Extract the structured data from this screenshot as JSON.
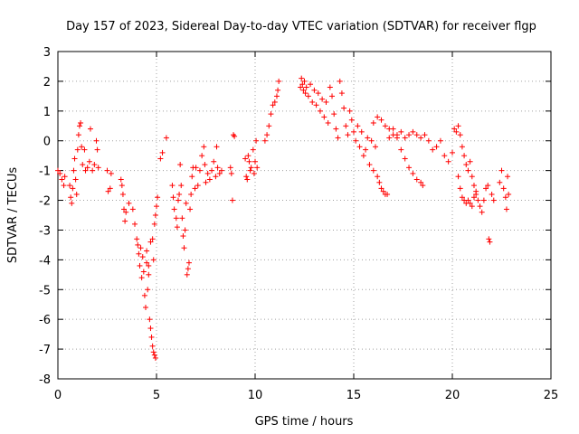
{
  "chart_data": {
    "type": "scatter",
    "title": "Day 157 of 2023, Sidereal Day-to-day VTEC variation (SDTVAR) for receiver flgp",
    "xlabel": "GPS time / hours",
    "ylabel": "SDTVAR / TECUs",
    "xlim": [
      0,
      25
    ],
    "ylim": [
      -8,
      3
    ],
    "xticks": [
      0,
      5,
      10,
      15,
      20,
      25
    ],
    "yticks": [
      -8,
      -7,
      -6,
      -5,
      -4,
      -3,
      -2,
      -1,
      0,
      1,
      2,
      3
    ],
    "grid": true,
    "marker": "+",
    "series": [
      {
        "name": "SDTVAR",
        "color": "#ff0000",
        "points": [
          [
            0.0,
            -1.0
          ],
          [
            0.1,
            -1.1
          ],
          [
            0.2,
            -1.3
          ],
          [
            0.3,
            -1.5
          ],
          [
            0.35,
            -1.2
          ],
          [
            0.6,
            -1.5
          ],
          [
            0.65,
            -1.9
          ],
          [
            0.7,
            -2.1
          ],
          [
            0.75,
            -1.6
          ],
          [
            0.8,
            -1.0
          ],
          [
            0.85,
            -0.6
          ],
          [
            0.9,
            -1.3
          ],
          [
            0.95,
            -1.8
          ],
          [
            1.0,
            -0.3
          ],
          [
            1.05,
            0.2
          ],
          [
            1.1,
            0.5
          ],
          [
            1.15,
            0.6
          ],
          [
            1.2,
            -0.2
          ],
          [
            1.25,
            -0.8
          ],
          [
            1.35,
            -0.3
          ],
          [
            1.4,
            -1.0
          ],
          [
            1.5,
            -0.9
          ],
          [
            1.6,
            -0.7
          ],
          [
            1.65,
            0.4
          ],
          [
            1.75,
            -1.0
          ],
          [
            1.85,
            -0.8
          ],
          [
            1.95,
            0.0
          ],
          [
            2.0,
            -0.3
          ],
          [
            2.05,
            -0.9
          ],
          [
            2.5,
            -1.0
          ],
          [
            2.55,
            -1.7
          ],
          [
            2.65,
            -1.6
          ],
          [
            2.7,
            -1.1
          ],
          [
            3.2,
            -1.3
          ],
          [
            3.25,
            -1.5
          ],
          [
            3.3,
            -1.8
          ],
          [
            3.35,
            -2.3
          ],
          [
            3.4,
            -2.7
          ],
          [
            3.45,
            -2.4
          ],
          [
            3.6,
            -2.1
          ],
          [
            3.8,
            -2.3
          ],
          [
            3.9,
            -2.8
          ],
          [
            4.0,
            -3.3
          ],
          [
            4.05,
            -3.5
          ],
          [
            4.1,
            -3.8
          ],
          [
            4.15,
            -4.2
          ],
          [
            4.2,
            -3.6
          ],
          [
            4.25,
            -4.6
          ],
          [
            4.3,
            -3.9
          ],
          [
            4.35,
            -4.4
          ],
          [
            4.4,
            -5.2
          ],
          [
            4.45,
            -5.6
          ],
          [
            4.5,
            -4.1
          ],
          [
            4.55,
            -5.0
          ],
          [
            4.6,
            -4.5
          ],
          [
            4.65,
            -6.0
          ],
          [
            4.7,
            -6.3
          ],
          [
            4.75,
            -6.6
          ],
          [
            4.8,
            -6.9
          ],
          [
            4.85,
            -7.1
          ],
          [
            4.9,
            -7.2
          ],
          [
            4.95,
            -7.3
          ],
          [
            4.5,
            -3.7
          ],
          [
            4.6,
            -4.2
          ],
          [
            4.7,
            -3.4
          ],
          [
            4.8,
            -3.3
          ],
          [
            4.85,
            -4.0
          ],
          [
            4.9,
            -2.8
          ],
          [
            4.95,
            -2.5
          ],
          [
            5.0,
            -2.2
          ],
          [
            5.05,
            -1.9
          ],
          [
            5.2,
            -0.6
          ],
          [
            5.3,
            -0.4
          ],
          [
            5.5,
            0.1
          ],
          [
            5.8,
            -1.5
          ],
          [
            5.85,
            -1.9
          ],
          [
            5.9,
            -2.3
          ],
          [
            6.0,
            -2.6
          ],
          [
            6.05,
            -2.9
          ],
          [
            6.1,
            -2.0
          ],
          [
            6.15,
            -1.8
          ],
          [
            6.2,
            -0.8
          ],
          [
            6.25,
            -1.5
          ],
          [
            6.3,
            -2.6
          ],
          [
            6.35,
            -3.2
          ],
          [
            6.4,
            -3.6
          ],
          [
            6.45,
            -3.0
          ],
          [
            6.5,
            -2.1
          ],
          [
            6.55,
            -4.5
          ],
          [
            6.6,
            -4.3
          ],
          [
            6.65,
            -4.1
          ],
          [
            6.7,
            -2.3
          ],
          [
            6.75,
            -1.8
          ],
          [
            6.8,
            -1.2
          ],
          [
            6.85,
            -0.9
          ],
          [
            6.95,
            -1.6
          ],
          [
            7.0,
            -0.9
          ],
          [
            7.1,
            -1.5
          ],
          [
            7.2,
            -1.0
          ],
          [
            7.3,
            -0.5
          ],
          [
            7.4,
            -0.2
          ],
          [
            7.45,
            -0.8
          ],
          [
            7.5,
            -1.4
          ],
          [
            7.6,
            -1.1
          ],
          [
            7.7,
            -1.3
          ],
          [
            7.8,
            -1.0
          ],
          [
            7.9,
            -0.7
          ],
          [
            8.0,
            -1.2
          ],
          [
            8.05,
            -0.2
          ],
          [
            8.1,
            -0.9
          ],
          [
            8.2,
            -1.1
          ],
          [
            8.3,
            -1.0
          ],
          [
            8.75,
            -0.9
          ],
          [
            8.8,
            -1.1
          ],
          [
            8.85,
            -2.0
          ],
          [
            8.9,
            0.2
          ],
          [
            8.95,
            0.15
          ],
          [
            9.5,
            -0.6
          ],
          [
            9.55,
            -1.2
          ],
          [
            9.6,
            -1.3
          ],
          [
            9.65,
            -0.5
          ],
          [
            9.7,
            -0.7
          ],
          [
            9.75,
            -1.0
          ],
          [
            9.8,
            -0.9
          ],
          [
            9.9,
            -0.3
          ],
          [
            9.95,
            -1.1
          ],
          [
            10.0,
            -0.7
          ],
          [
            10.05,
            0.0
          ],
          [
            10.1,
            -0.9
          ],
          [
            10.5,
            0.0
          ],
          [
            10.6,
            0.2
          ],
          [
            10.7,
            0.5
          ],
          [
            10.8,
            0.9
          ],
          [
            10.9,
            1.2
          ],
          [
            11.0,
            1.3
          ],
          [
            11.1,
            1.5
          ],
          [
            11.15,
            1.7
          ],
          [
            11.2,
            2.0
          ],
          [
            12.3,
            1.8
          ],
          [
            12.35,
            2.1
          ],
          [
            12.4,
            1.9
          ],
          [
            12.45,
            1.7
          ],
          [
            12.5,
            2.0
          ],
          [
            12.55,
            1.6
          ],
          [
            12.6,
            1.8
          ],
          [
            12.7,
            1.5
          ],
          [
            12.8,
            1.9
          ],
          [
            12.9,
            1.3
          ],
          [
            13.0,
            1.7
          ],
          [
            13.1,
            1.2
          ],
          [
            13.2,
            1.6
          ],
          [
            13.3,
            1.0
          ],
          [
            13.4,
            1.4
          ],
          [
            13.5,
            0.8
          ],
          [
            13.6,
            1.3
          ],
          [
            13.7,
            0.6
          ],
          [
            13.8,
            1.8
          ],
          [
            13.9,
            1.5
          ],
          [
            14.0,
            0.9
          ],
          [
            14.1,
            0.4
          ],
          [
            14.2,
            0.1
          ],
          [
            14.3,
            2.0
          ],
          [
            14.4,
            1.6
          ],
          [
            14.5,
            1.1
          ],
          [
            14.6,
            0.5
          ],
          [
            14.7,
            0.2
          ],
          [
            14.8,
            1.0
          ],
          [
            14.9,
            0.7
          ],
          [
            15.0,
            0.3
          ],
          [
            15.1,
            0.0
          ],
          [
            15.2,
            0.5
          ],
          [
            15.3,
            -0.2
          ],
          [
            15.4,
            0.3
          ],
          [
            15.5,
            -0.5
          ],
          [
            15.6,
            -0.3
          ],
          [
            15.7,
            0.1
          ],
          [
            15.8,
            -0.8
          ],
          [
            15.9,
            0.0
          ],
          [
            16.0,
            -1.0
          ],
          [
            16.1,
            -0.2
          ],
          [
            16.2,
            -1.2
          ],
          [
            16.3,
            -1.4
          ],
          [
            16.4,
            -1.6
          ],
          [
            16.5,
            -1.7
          ],
          [
            16.6,
            -1.8
          ],
          [
            16.7,
            -1.8
          ],
          [
            16.0,
            0.6
          ],
          [
            16.2,
            0.8
          ],
          [
            16.4,
            0.7
          ],
          [
            16.6,
            0.5
          ],
          [
            16.8,
            0.4
          ],
          [
            17.0,
            0.2
          ],
          [
            17.2,
            0.1
          ],
          [
            17.4,
            -0.3
          ],
          [
            17.6,
            -0.6
          ],
          [
            17.8,
            -0.9
          ],
          [
            18.0,
            -1.1
          ],
          [
            18.2,
            -1.3
          ],
          [
            18.4,
            -1.4
          ],
          [
            18.5,
            -1.5
          ],
          [
            16.8,
            0.1
          ],
          [
            17.0,
            0.4
          ],
          [
            17.2,
            0.2
          ],
          [
            17.4,
            0.3
          ],
          [
            17.6,
            0.1
          ],
          [
            17.8,
            0.2
          ],
          [
            18.0,
            0.3
          ],
          [
            18.2,
            0.2
          ],
          [
            18.4,
            0.1
          ],
          [
            18.6,
            0.2
          ],
          [
            18.8,
            0.0
          ],
          [
            19.0,
            -0.3
          ],
          [
            19.2,
            -0.2
          ],
          [
            19.4,
            0.0
          ],
          [
            19.6,
            -0.5
          ],
          [
            19.8,
            -0.7
          ],
          [
            20.0,
            -0.4
          ],
          [
            20.1,
            0.4
          ],
          [
            20.2,
            0.3
          ],
          [
            20.3,
            0.5
          ],
          [
            20.4,
            0.2
          ],
          [
            20.5,
            -0.2
          ],
          [
            20.6,
            -0.5
          ],
          [
            20.7,
            -0.8
          ],
          [
            20.8,
            -1.0
          ],
          [
            20.9,
            -0.7
          ],
          [
            21.0,
            -1.2
          ],
          [
            21.1,
            -1.5
          ],
          [
            21.2,
            -1.8
          ],
          [
            21.3,
            -2.0
          ],
          [
            21.4,
            -2.2
          ],
          [
            21.5,
            -2.4
          ],
          [
            21.6,
            -2.0
          ],
          [
            21.7,
            -1.6
          ],
          [
            21.8,
            -1.5
          ],
          [
            21.85,
            -3.3
          ],
          [
            21.9,
            -3.4
          ],
          [
            22.0,
            -1.8
          ],
          [
            22.1,
            -2.0
          ],
          [
            20.3,
            -1.2
          ],
          [
            20.4,
            -1.6
          ],
          [
            20.5,
            -1.9
          ],
          [
            20.6,
            -2.0
          ],
          [
            20.7,
            -2.1
          ],
          [
            20.8,
            -2.0
          ],
          [
            20.9,
            -2.1
          ],
          [
            21.0,
            -2.2
          ],
          [
            21.1,
            -1.9
          ],
          [
            21.2,
            -1.7
          ],
          [
            22.4,
            -1.4
          ],
          [
            22.5,
            -1.0
          ],
          [
            22.6,
            -1.6
          ],
          [
            22.7,
            -1.9
          ],
          [
            22.75,
            -2.3
          ],
          [
            22.8,
            -1.2
          ],
          [
            22.85,
            -1.8
          ]
        ]
      }
    ]
  }
}
